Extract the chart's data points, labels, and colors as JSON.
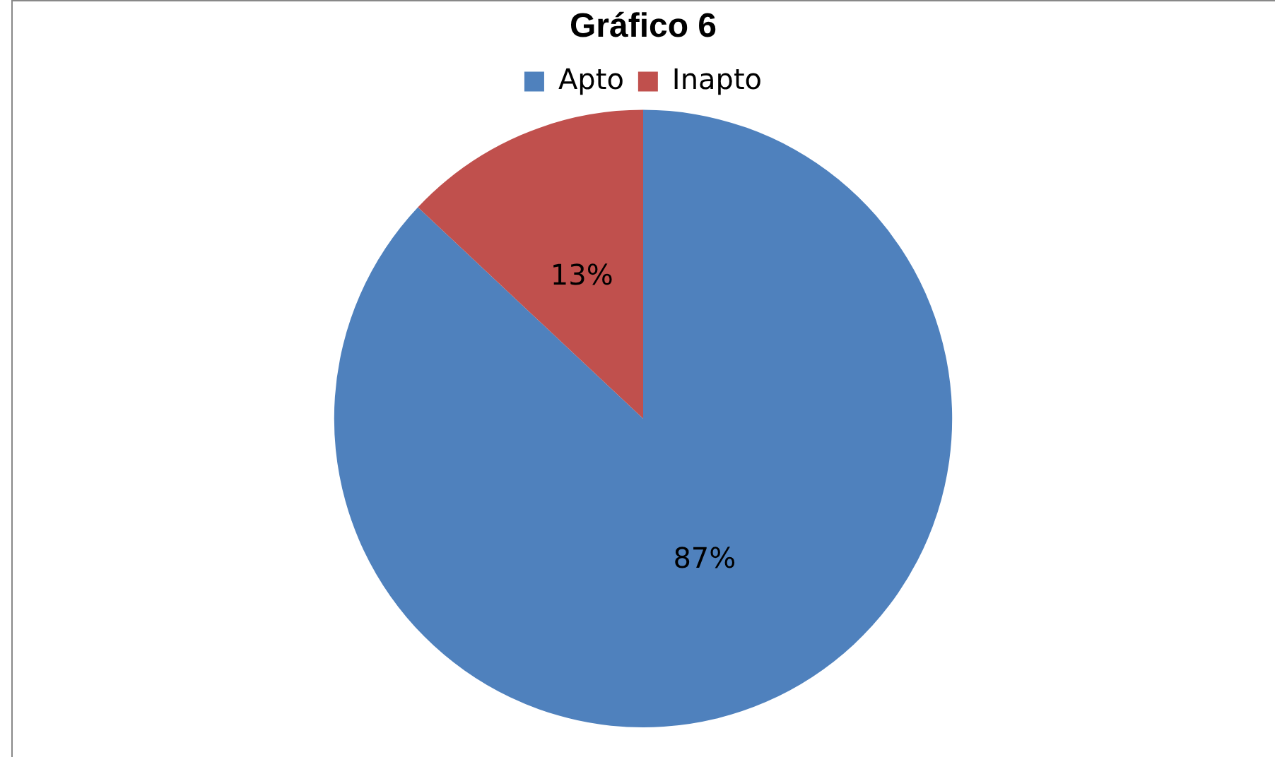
{
  "chart_data": {
    "type": "pie",
    "title": "Gráfico 6",
    "categories": [
      "Apto",
      "Inapto"
    ],
    "values": [
      87,
      13
    ],
    "colors": [
      "#4f81bd",
      "#c0504d"
    ],
    "value_labels": [
      "87%",
      "13%"
    ],
    "legend": "top"
  }
}
